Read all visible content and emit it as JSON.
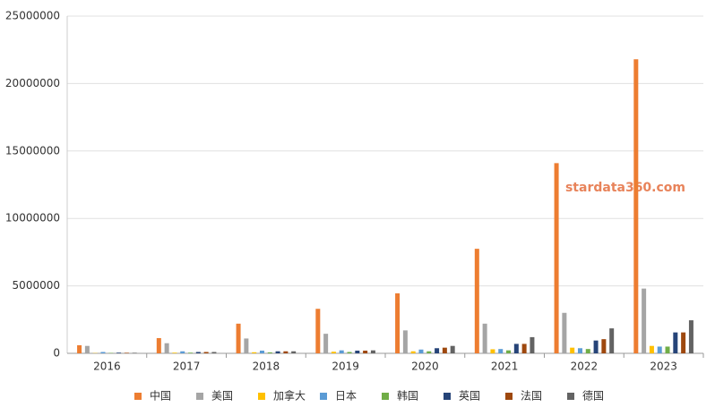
{
  "chart_data": {
    "type": "bar",
    "categories": [
      "2016",
      "2017",
      "2018",
      "2019",
      "2020",
      "2021",
      "2022",
      "2023"
    ],
    "series": [
      {
        "name": "中国",
        "color": "#ed7d31",
        "values": [
          600000,
          1130000,
          2200000,
          3300000,
          4450000,
          7750000,
          14100000,
          21800000
        ]
      },
      {
        "name": "美国",
        "color": "#a5a5a5",
        "values": [
          550000,
          750000,
          1100000,
          1450000,
          1700000,
          2200000,
          3000000,
          4800000
        ]
      },
      {
        "name": "加拿大",
        "color": "#ffc000",
        "values": [
          20000,
          50000,
          80000,
          120000,
          150000,
          300000,
          420000,
          550000
        ]
      },
      {
        "name": "日本",
        "color": "#5b9bd5",
        "values": [
          100000,
          150000,
          200000,
          220000,
          280000,
          320000,
          380000,
          500000
        ]
      },
      {
        "name": "韩国",
        "color": "#70ad47",
        "values": [
          30000,
          50000,
          70000,
          100000,
          150000,
          220000,
          320000,
          500000
        ]
      },
      {
        "name": "英国",
        "color": "#264478",
        "values": [
          50000,
          100000,
          150000,
          200000,
          380000,
          700000,
          950000,
          1550000
        ]
      },
      {
        "name": "法国",
        "color": "#9e480e",
        "values": [
          40000,
          100000,
          150000,
          200000,
          420000,
          700000,
          1050000,
          1550000
        ]
      },
      {
        "name": "德国",
        "color": "#636363",
        "values": [
          40000,
          100000,
          150000,
          220000,
          550000,
          1200000,
          1850000,
          2450000
        ]
      }
    ],
    "ylim": [
      0,
      25000000
    ],
    "yticks": [
      0,
      5000000,
      10000000,
      15000000,
      20000000,
      25000000
    ],
    "grid": true,
    "legend": "bottom",
    "watermark": "stardata360.com"
  }
}
